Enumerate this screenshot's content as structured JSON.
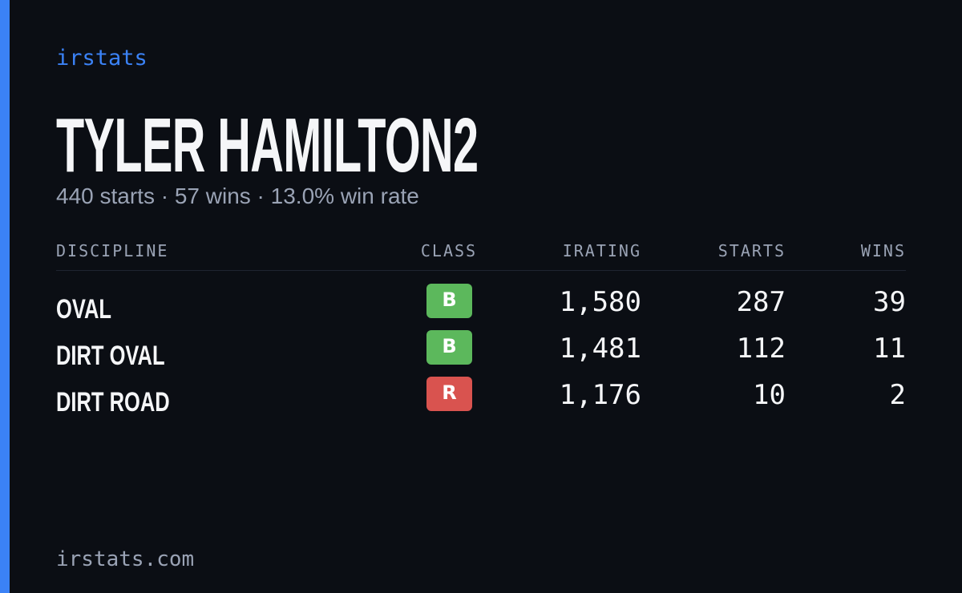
{
  "brand": "irstats",
  "driver": {
    "name": "TYLER HAMILTON2",
    "summary": "440 starts · 57 wins · 13.0% win rate"
  },
  "table": {
    "headers": [
      "DISCIPLINE",
      "CLASS",
      "IRATING",
      "STARTS",
      "WINS"
    ],
    "rows": [
      {
        "discipline": "OVAL",
        "class": "B",
        "class_color": "#5cb85c",
        "irating": "1,580",
        "starts": "287",
        "wins": "39"
      },
      {
        "discipline": "DIRT OVAL",
        "class": "B",
        "class_color": "#5cb85c",
        "irating": "1,481",
        "starts": "112",
        "wins": "11"
      },
      {
        "discipline": "DIRT ROAD",
        "class": "R",
        "class_color": "#d9534f",
        "irating": "1,176",
        "starts": "10",
        "wins": "2"
      }
    ]
  },
  "footer": "irstats.com"
}
